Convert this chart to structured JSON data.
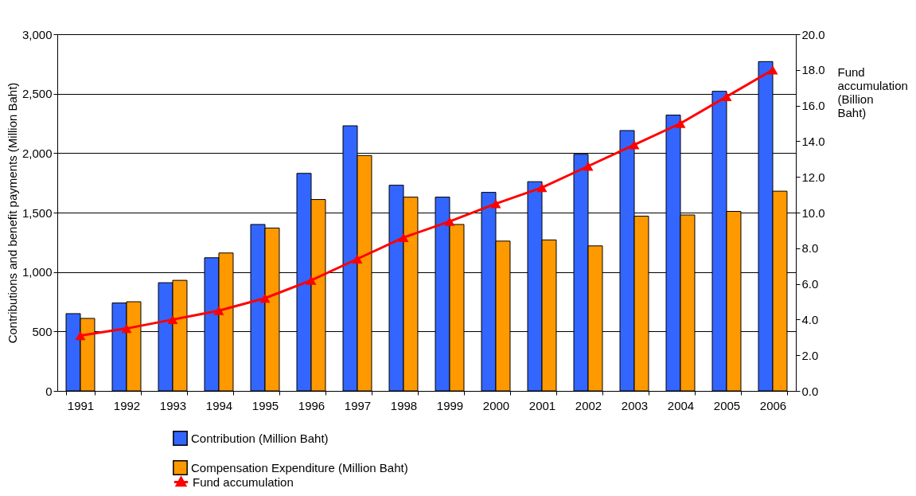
{
  "chart_data": {
    "type": "bar",
    "ylabel": "Contributions and benefit payments (Million Baht)",
    "y2label": "Fund accumulation (Billion Baht)",
    "categories": [
      "1991",
      "1992",
      "1993",
      "1994",
      "1995",
      "1996",
      "1997",
      "1998",
      "1999",
      "2000",
      "2001",
      "2002",
      "2003",
      "2004",
      "2005",
      "2006"
    ],
    "series": [
      {
        "name": "Contribution (Million Baht)",
        "color": "#3366ff",
        "values": [
          650,
          740,
          910,
          1120,
          1400,
          1830,
          2230,
          1730,
          1630,
          1670,
          1760,
          1990,
          2190,
          2320,
          2520,
          2770
        ]
      },
      {
        "name": "Compensation Expenditure (Million Baht)",
        "color": "#ff9900",
        "values": [
          610,
          750,
          930,
          1160,
          1370,
          1610,
          1980,
          1630,
          1400,
          1260,
          1270,
          1220,
          1470,
          1480,
          1510,
          1680
        ]
      },
      {
        "name": "Fund accumulation",
        "type": "line",
        "axis": "y2",
        "color": "#ff0000",
        "marker": "triangle",
        "values": [
          3.1,
          3.5,
          4.0,
          4.5,
          5.2,
          6.2,
          7.4,
          8.6,
          9.5,
          10.5,
          11.4,
          12.6,
          13.8,
          15.0,
          16.5,
          18.0
        ]
      }
    ],
    "ylim": [
      0,
      3000
    ],
    "yticks": [
      {
        "value": 0,
        "label": "0"
      },
      {
        "value": 500,
        "label": "500"
      },
      {
        "value": 1000,
        "label": "1,000"
      },
      {
        "value": 1500,
        "label": "1,500"
      },
      {
        "value": 2000,
        "label": "2,000"
      },
      {
        "value": 2500,
        "label": "2,500"
      },
      {
        "value": 3000,
        "label": "3,000"
      }
    ],
    "y2lim": [
      0,
      20
    ],
    "y2ticks": [
      {
        "value": 0,
        "label": "0.0"
      },
      {
        "value": 2,
        "label": "2.0"
      },
      {
        "value": 4,
        "label": "4.0"
      },
      {
        "value": 6,
        "label": "6.0"
      },
      {
        "value": 8,
        "label": "8.0"
      },
      {
        "value": 10,
        "label": "10.0"
      },
      {
        "value": 12,
        "label": "12.0"
      },
      {
        "value": 14,
        "label": "14.0"
      },
      {
        "value": 16,
        "label": "16.0"
      },
      {
        "value": 18,
        "label": "18.0"
      },
      {
        "value": 20,
        "label": "20.0"
      }
    ],
    "grid": "y",
    "legend": "bottom"
  }
}
